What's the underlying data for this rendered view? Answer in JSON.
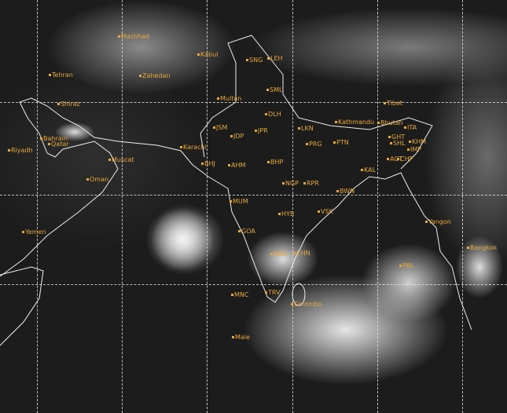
{
  "image": {
    "type": "satellite-infrared",
    "grid": "dashed lat/lon lines",
    "label_color": "#e8a83a"
  },
  "places": [
    {
      "name": "Mashhad",
      "p": [
        150,
        47
      ]
    },
    {
      "name": "Tehran",
      "p": [
        62,
        96
      ]
    },
    {
      "name": "Zahedan",
      "p": [
        177,
        97
      ]
    },
    {
      "name": "Kabul",
      "p": [
        251,
        70
      ]
    },
    {
      "name": "SNG",
      "p": [
        313,
        77
      ]
    },
    {
      "name": "LEH",
      "p": [
        340,
        75
      ]
    },
    {
      "name": "Shiraz",
      "p": [
        73,
        133
      ]
    },
    {
      "name": "Multan",
      "p": [
        276,
        126
      ]
    },
    {
      "name": "SML",
      "p": [
        339,
        115
      ]
    },
    {
      "name": "Tibet",
      "p": [
        488,
        132
      ]
    },
    {
      "name": "DLH",
      "p": [
        337,
        146
      ]
    },
    {
      "name": "Kathmandu",
      "p": [
        426,
        156
      ]
    },
    {
      "name": "Bhutan",
      "p": [
        480,
        157
      ]
    },
    {
      "name": "ITA",
      "p": [
        514,
        163
      ]
    },
    {
      "name": "JSM",
      "p": [
        271,
        163
      ]
    },
    {
      "name": "JDP",
      "p": [
        293,
        174
      ]
    },
    {
      "name": "JPR",
      "p": [
        324,
        167
      ]
    },
    {
      "name": "LKN",
      "p": [
        379,
        164
      ]
    },
    {
      "name": "GHT",
      "p": [
        494,
        175
      ]
    },
    {
      "name": "SHL",
      "p": [
        496,
        183
      ]
    },
    {
      "name": "KHM",
      "p": [
        520,
        181
      ]
    },
    {
      "name": "IMP",
      "p": [
        518,
        191
      ]
    },
    {
      "name": "PRG",
      "p": [
        389,
        184
      ]
    },
    {
      "name": "PTN",
      "p": [
        424,
        182
      ]
    },
    {
      "name": "Bahrain",
      "p": [
        51,
        177
      ]
    },
    {
      "name": "Qatar",
      "p": [
        61,
        184
      ]
    },
    {
      "name": "Riyadh",
      "p": [
        10,
        192
      ]
    },
    {
      "name": "Karachi",
      "p": [
        229,
        188
      ]
    },
    {
      "name": "AGT",
      "p": [
        492,
        203
      ]
    },
    {
      "name": "CHP",
      "p": [
        505,
        203
      ]
    },
    {
      "name": "Muscat",
      "p": [
        138,
        204
      ]
    },
    {
      "name": "BHJ",
      "p": [
        256,
        209
      ]
    },
    {
      "name": "AHM",
      "p": [
        290,
        211
      ]
    },
    {
      "name": "BHP",
      "p": [
        340,
        207
      ]
    },
    {
      "name": "KAL",
      "p": [
        459,
        217
      ]
    },
    {
      "name": "Oman",
      "p": [
        110,
        229
      ]
    },
    {
      "name": "NGP",
      "p": [
        359,
        234
      ]
    },
    {
      "name": "RPR",
      "p": [
        386,
        234
      ]
    },
    {
      "name": "BWN",
      "p": [
        428,
        244
      ]
    },
    {
      "name": "MUM",
      "p": [
        292,
        257
      ]
    },
    {
      "name": "HYB",
      "p": [
        354,
        273
      ]
    },
    {
      "name": "VSK",
      "p": [
        404,
        270
      ]
    },
    {
      "name": "Yangon",
      "p": [
        541,
        283
      ]
    },
    {
      "name": "Yemen",
      "p": [
        28,
        296
      ]
    },
    {
      "name": "GOA",
      "p": [
        303,
        295
      ]
    },
    {
      "name": "BNG",
      "p": [
        344,
        324
      ]
    },
    {
      "name": "CHN",
      "p": [
        373,
        323
      ]
    },
    {
      "name": "Bangkok",
      "p": [
        594,
        316
      ]
    },
    {
      "name": "PBL",
      "p": [
        508,
        339
      ]
    },
    {
      "name": "MNC",
      "p": [
        294,
        376
      ]
    },
    {
      "name": "TRV",
      "p": [
        337,
        373
      ]
    },
    {
      "name": "Colombo",
      "p": [
        370,
        388
      ]
    },
    {
      "name": "Male",
      "p": [
        295,
        430
      ]
    }
  ]
}
